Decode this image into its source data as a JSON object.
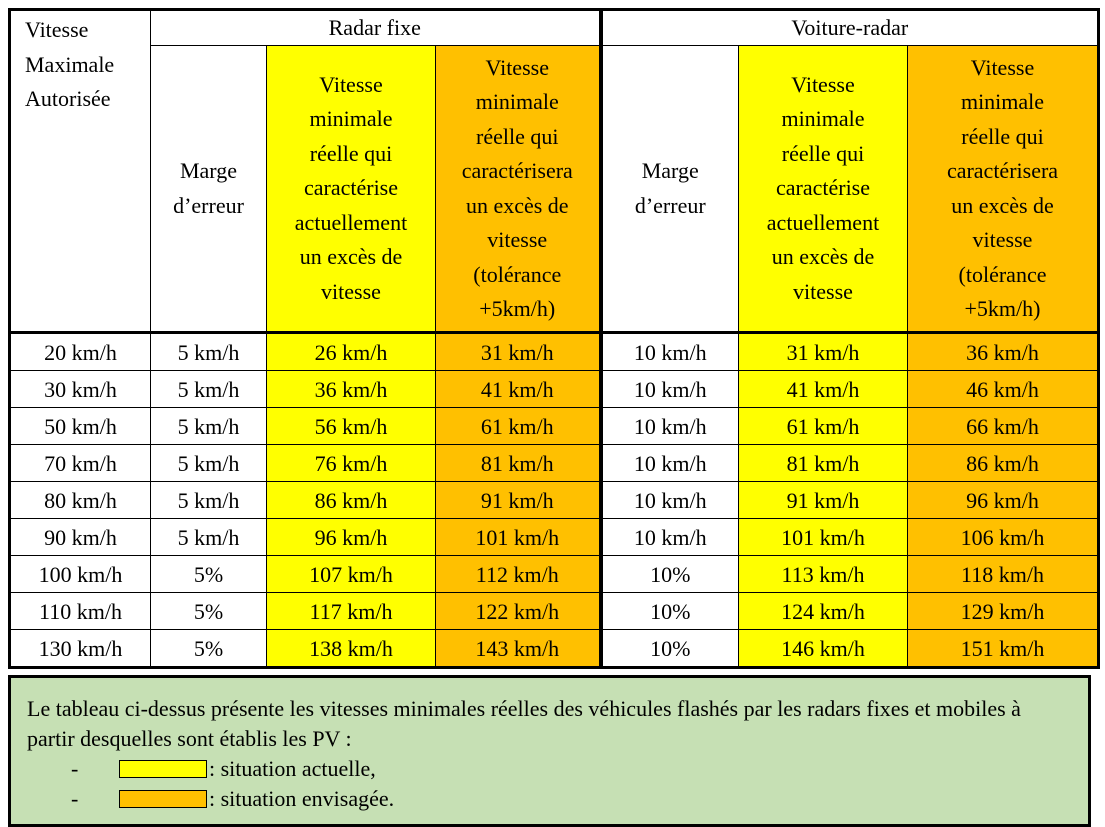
{
  "table": {
    "group_fixed": "Radar fixe",
    "group_mobile": "Voiture-radar",
    "col_vma": "Vitesse\nMaximale\nAutorisée",
    "col_margin": "Marge\nd’erreur",
    "col_current": "Vitesse\nminimale\nréelle qui\ncaractérise\nactuellement\nun excès de\nvitesse",
    "col_planned": "Vitesse\nminimale\nréelle qui\ncaractérisera\nun excès de\nvitesse\n(tolérance\n+5km/h)",
    "rows": [
      {
        "vma": "20 km/h",
        "fm": "5 km/h",
        "fc": "26 km/h",
        "fp": "31 km/h",
        "mm": "10 km/h",
        "mc": "31 km/h",
        "mp": "36 km/h"
      },
      {
        "vma": "30 km/h",
        "fm": "5 km/h",
        "fc": "36 km/h",
        "fp": "41 km/h",
        "mm": "10 km/h",
        "mc": "41 km/h",
        "mp": "46 km/h"
      },
      {
        "vma": "50 km/h",
        "fm": "5 km/h",
        "fc": "56 km/h",
        "fp": "61 km/h",
        "mm": "10 km/h",
        "mc": "61 km/h",
        "mp": "66 km/h"
      },
      {
        "vma": "70 km/h",
        "fm": "5 km/h",
        "fc": "76 km/h",
        "fp": "81 km/h",
        "mm": "10 km/h",
        "mc": "81 km/h",
        "mp": "86 km/h"
      },
      {
        "vma": "80 km/h",
        "fm": "5 km/h",
        "fc": "86 km/h",
        "fp": "91 km/h",
        "mm": "10 km/h",
        "mc": "91 km/h",
        "mp": "96 km/h"
      },
      {
        "vma": "90 km/h",
        "fm": "5 km/h",
        "fc": "96 km/h",
        "fp": "101 km/h",
        "mm": "10 km/h",
        "mc": "101 km/h",
        "mp": "106 km/h"
      },
      {
        "vma": "100 km/h",
        "fm": "5%",
        "fc": "107 km/h",
        "fp": "112 km/h",
        "mm": "10%",
        "mc": "113 km/h",
        "mp": "118 km/h"
      },
      {
        "vma": "110 km/h",
        "fm": "5%",
        "fc": "117 km/h",
        "fp": "122 km/h",
        "mm": "10%",
        "mc": "124 km/h",
        "mp": "129 km/h"
      },
      {
        "vma": "130 km/h",
        "fm": "5%",
        "fc": "138 km/h",
        "fp": "143 km/h",
        "mm": "10%",
        "mc": "146 km/h",
        "mp": "151 km/h"
      }
    ]
  },
  "legend": {
    "text": "Le tableau ci-dessus présente les vitesses minimales réelles des véhicules flashés par les radars fixes et mobiles à partir desquelles sont établis les PV :",
    "items": [
      {
        "dash": "-",
        "label": ": situation actuelle,",
        "color": "#ffff00"
      },
      {
        "dash": "-",
        "label": ": situation envisagée.",
        "color": "#ffc000"
      }
    ],
    "background": "#c6e0b4"
  },
  "colors": {
    "current": "#ffff00",
    "planned": "#ffc000"
  }
}
